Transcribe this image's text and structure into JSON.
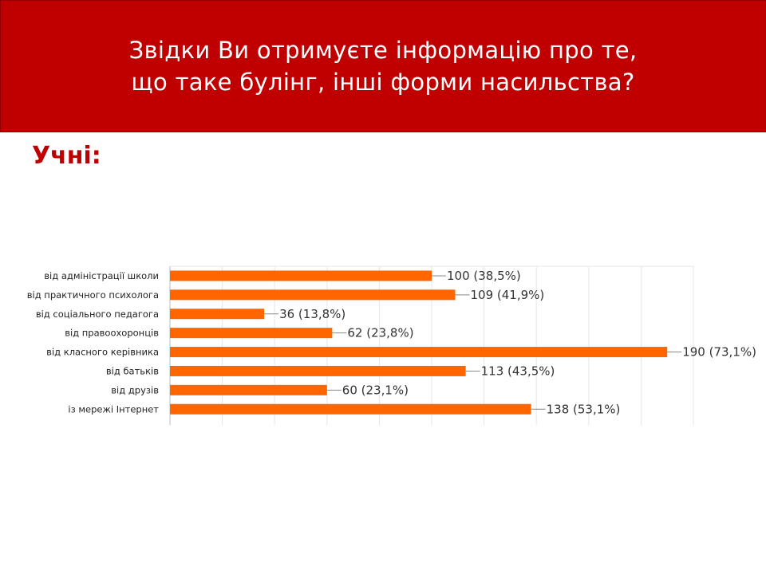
{
  "slide": {
    "title_line1": "Звідки Ви отримуєте інформацію про те,",
    "title_line2": "що таке булінг, інші форми насильства?",
    "subtitle": "Учні:"
  },
  "colors": {
    "header_bg": "#c00000",
    "subtitle": "#c00000",
    "bar": "#ff6600",
    "grid": "#e6e6e6"
  },
  "chart_data": {
    "type": "bar",
    "orientation": "horizontal",
    "categories": [
      "від адміністрації школи",
      "від практичного психолога",
      "від соціального педагога",
      "від правоохоронців",
      "від класного керівника",
      "від батьків",
      "від друзів",
      "із мережі Інтернет"
    ],
    "values": [
      100,
      109,
      36,
      62,
      190,
      113,
      60,
      138
    ],
    "percentages": [
      "38,5%",
      "41,9%",
      "13,8%",
      "23,8%",
      "73,1%",
      "43,5%",
      "23,1%",
      "53,1%"
    ],
    "data_labels": [
      "100 (38,5%)",
      "109 (41,9%)",
      "36 (13,8%)",
      "62 (23,8%)",
      "190 (73,1%)",
      "113 (43,5%)",
      "60 (23,1%)",
      "138 (53,1%)"
    ],
    "xlim": [
      0,
      200
    ],
    "grid": true,
    "legend": "none"
  }
}
